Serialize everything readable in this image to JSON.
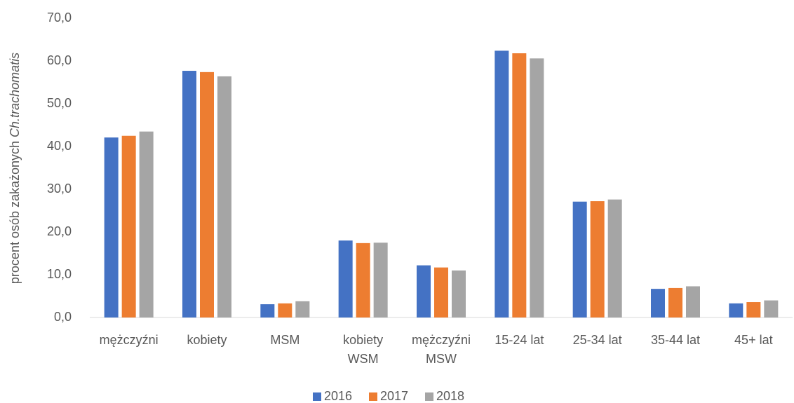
{
  "chart_data": {
    "type": "bar",
    "y_label": "procent osób zakażonych",
    "y_label_italic": "Ch.trachomatis",
    "categories": [
      [
        "mężczyźni"
      ],
      [
        "kobiety"
      ],
      [
        "MSM"
      ],
      [
        "kobiety",
        "WSM"
      ],
      [
        "mężczyźni",
        "MSW"
      ],
      [
        "15-24 lat"
      ],
      [
        "25-34 lat"
      ],
      [
        "35-44 lat"
      ],
      [
        "45+ lat"
      ]
    ],
    "series": [
      {
        "name": "2016",
        "color": "#4472c4",
        "values": [
          42.1,
          57.7,
          3.1,
          18.0,
          12.2,
          62.4,
          27.1,
          6.7,
          3.3
        ]
      },
      {
        "name": "2017",
        "color": "#ed7d31",
        "values": [
          42.5,
          57.4,
          3.3,
          17.4,
          11.7,
          61.8,
          27.2,
          6.9,
          3.6
        ]
      },
      {
        "name": "2018",
        "color": "#a5a5a5",
        "values": [
          43.5,
          56.4,
          3.8,
          17.5,
          11.0,
          60.6,
          27.6,
          7.3,
          4.0
        ]
      }
    ],
    "ylim": [
      0,
      70
    ],
    "yticks": [
      {
        "value": 0,
        "label": "0,0"
      },
      {
        "value": 10,
        "label": "10,0"
      },
      {
        "value": 20,
        "label": "20,0"
      },
      {
        "value": 30,
        "label": "30,0"
      },
      {
        "value": 40,
        "label": "40,0"
      },
      {
        "value": 50,
        "label": "50,0"
      },
      {
        "value": 60,
        "label": "60,0"
      },
      {
        "value": 70,
        "label": "70,0"
      }
    ],
    "grid": false,
    "legend": "bottom"
  }
}
